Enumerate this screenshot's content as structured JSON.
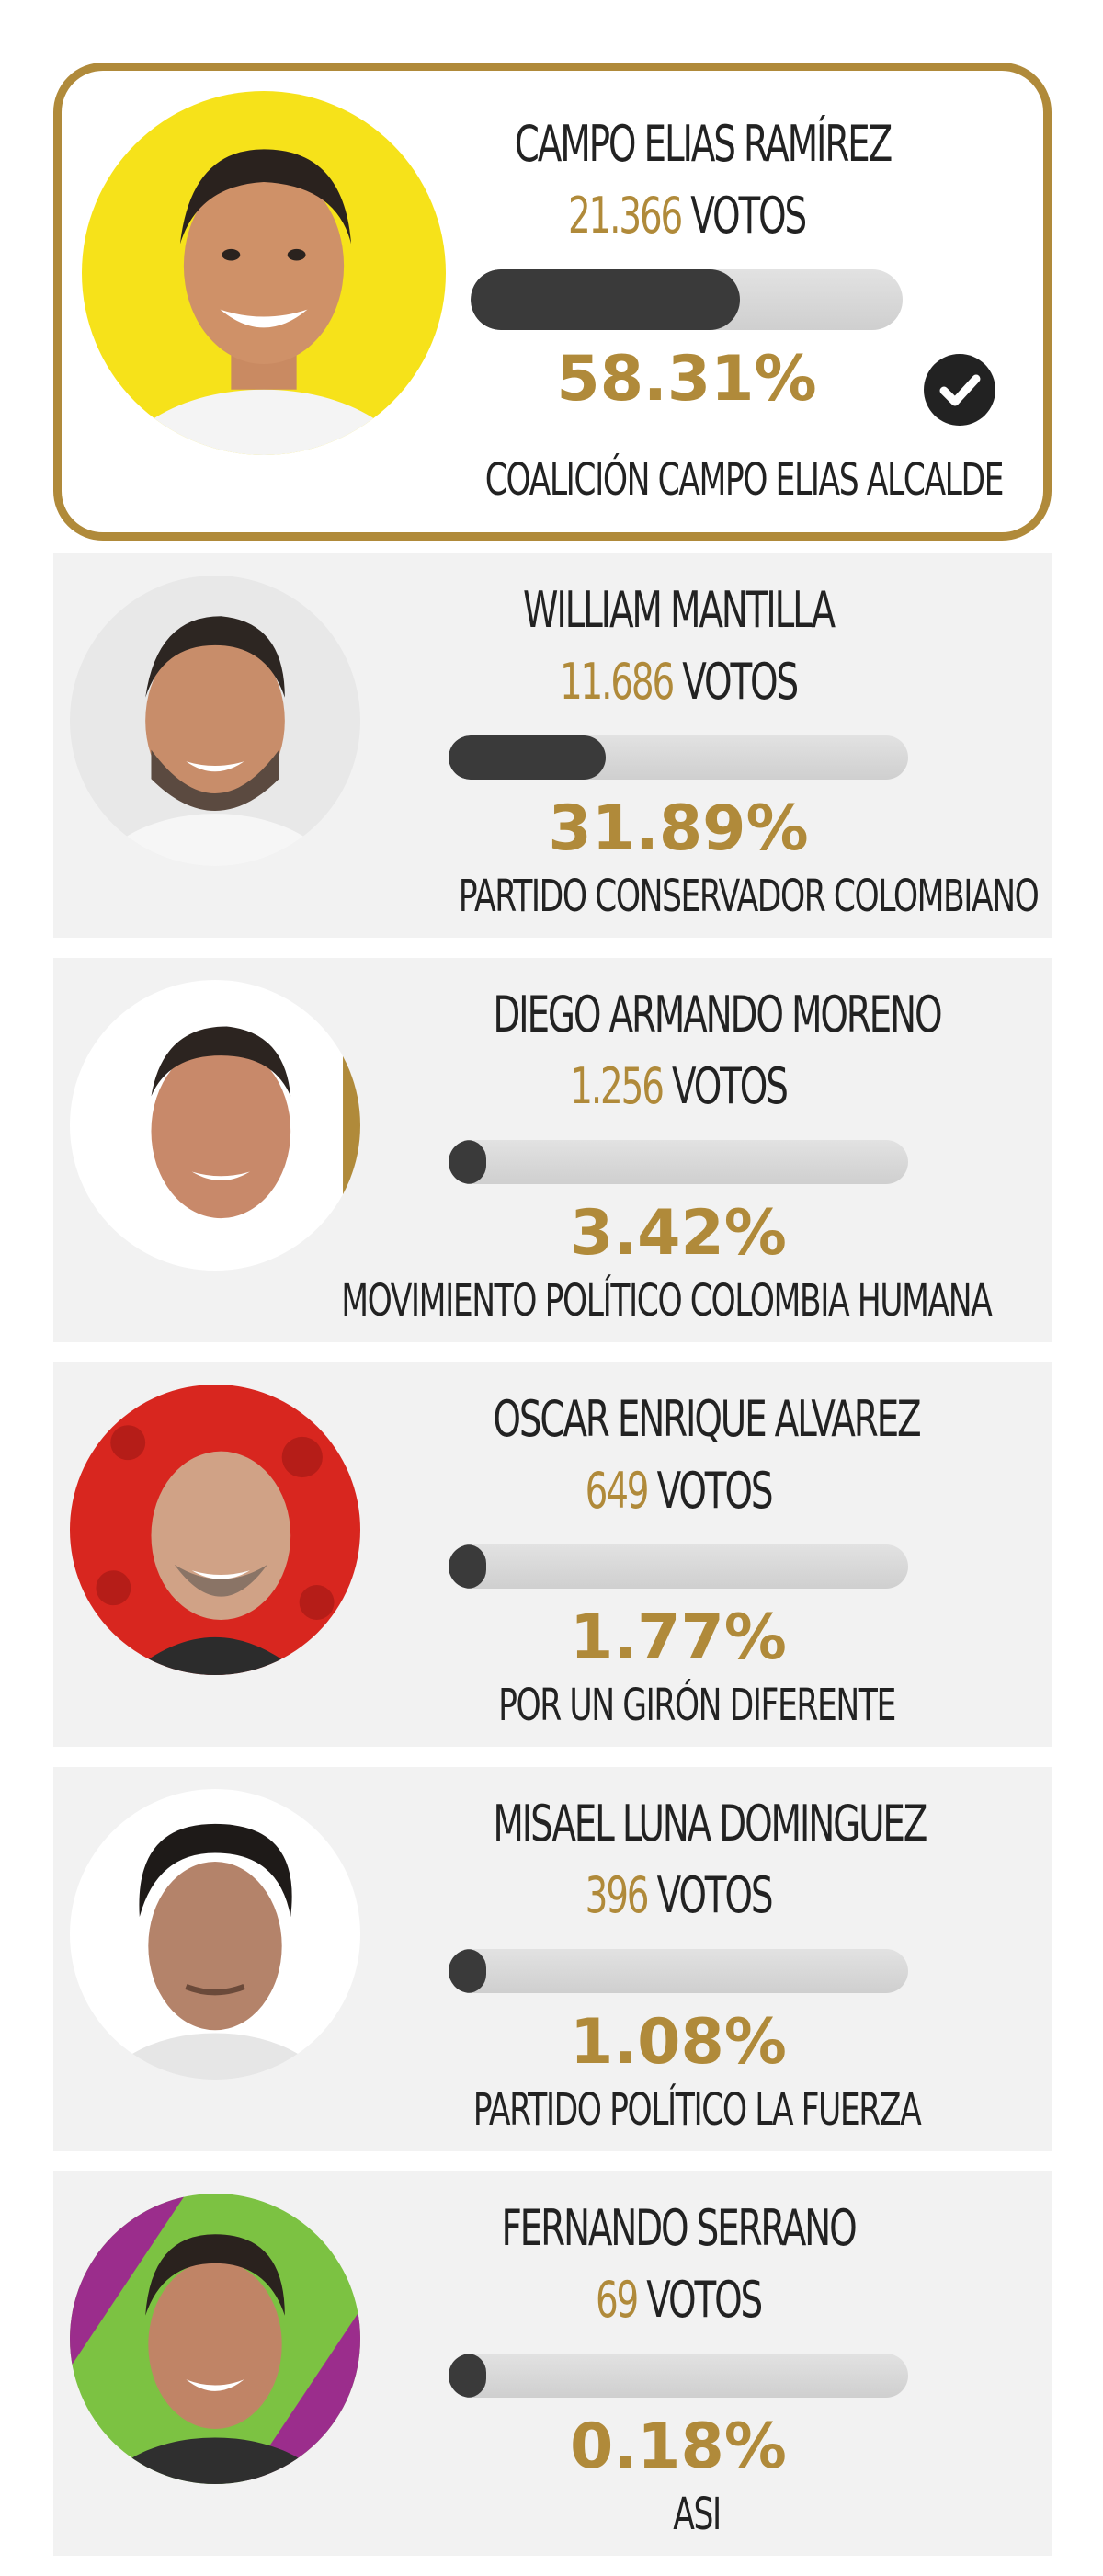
{
  "candidates": [
    {
      "name": "CAMPO ELIAS RAMÍREZ",
      "votes": "21.366",
      "votes_label": "VOTOS",
      "percent": "58.31%",
      "share": 0.5831,
      "party": "COALICIÓN CAMPO ELIAS ALCALDE",
      "winner": true,
      "avatar_bg": "#f6e21a"
    },
    {
      "name": "WILLIAM MANTILLA",
      "votes": "11.686",
      "votes_label": "VOTOS",
      "percent": "31.89%",
      "share": 0.3189,
      "party": "PARTIDO CONSERVADOR COLOMBIANO",
      "winner": false,
      "avatar_bg": "#e8e8e8"
    },
    {
      "name": "DIEGO ARMANDO MORENO",
      "votes": "1.256",
      "votes_label": "VOTOS",
      "percent": "3.42%",
      "share": 0.0342,
      "party": "MOVIMIENTO POLÍTICO COLOMBIA HUMANA",
      "winner": false,
      "avatar_bg": "#ffffff"
    },
    {
      "name": "OSCAR ENRIQUE ALVAREZ",
      "votes": "649",
      "votes_label": "VOTOS",
      "percent": "1.77%",
      "share": 0.0177,
      "party": "POR UN GIRÓN DIFERENTE",
      "winner": false,
      "avatar_bg": "#d8261f"
    },
    {
      "name": "MISAEL LUNA DOMINGUEZ",
      "votes": "396",
      "votes_label": "VOTOS",
      "percent": "1.08%",
      "share": 0.0108,
      "party": "PARTIDO POLÍTICO LA FUERZA",
      "winner": false,
      "avatar_bg": "#ffffff"
    },
    {
      "name": "FERNANDO SERRANO",
      "votes": "69",
      "votes_label": "VOTOS",
      "percent": "0.18%",
      "share": 0.0018,
      "party": "ASI",
      "winner": false,
      "avatar_bg": "#7cc242"
    }
  ],
  "colors": {
    "accent": "#b08a3a",
    "bar_fill": "#3a3a3a",
    "bar_track": "#d8d8d8",
    "card_bg": "#f2f2f2"
  },
  "icons": {
    "winner": "check-circle-icon",
    "avatar": "candidate-photo"
  }
}
